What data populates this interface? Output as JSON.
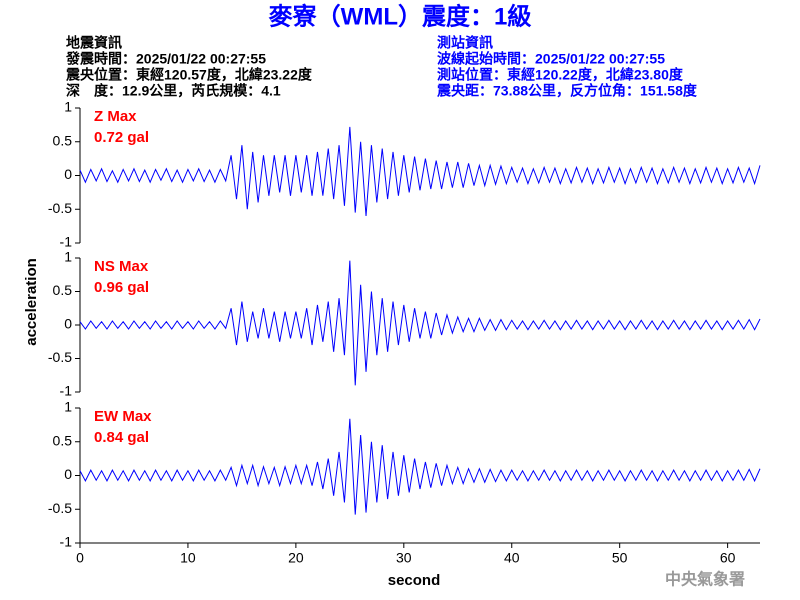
{
  "chart_data": {
    "type": "seismogram",
    "title": "麥寮（WML）震度：1級",
    "info_left": [
      "地震資訊",
      "發震時間：2025/01/22 00:27:55",
      "震央位置：東經120.57度，北緯23.22度",
      "深　度：12.9公里，芮氏規模：4.1"
    ],
    "info_right": [
      "測站資訊",
      "波線起始時間：2025/01/22 00:27:55",
      "測站位置：東經120.22度，北緯23.80度",
      "震央距：73.88公里，反方位角：151.58度"
    ],
    "ylabel": "acceleration",
    "xlabel": "second",
    "watermark": "中央氣象署",
    "xlim": [
      0,
      63
    ],
    "xticks": [
      0,
      10,
      20,
      30,
      40,
      50,
      60
    ],
    "ylim": [
      -1,
      1
    ],
    "yticks": [
      1,
      0.5,
      0,
      -0.5,
      -1
    ],
    "line_color": "#0000ff",
    "label_color": "#ff0000",
    "x": [
      0,
      0.5,
      1,
      1.5,
      2,
      2.5,
      3,
      3.5,
      4,
      4.5,
      5,
      5.5,
      6,
      6.5,
      7,
      7.5,
      8,
      8.5,
      9,
      9.5,
      10,
      10.5,
      11,
      11.5,
      12,
      12.5,
      13,
      13.5,
      14,
      14.5,
      15,
      15.5,
      16,
      16.5,
      17,
      17.5,
      18,
      18.5,
      19,
      19.5,
      20,
      20.5,
      21,
      21.5,
      22,
      22.5,
      23,
      23.5,
      24,
      24.5,
      25,
      25.5,
      26,
      26.5,
      27,
      27.5,
      28,
      28.5,
      29,
      29.5,
      30,
      30.5,
      31,
      31.5,
      32,
      32.5,
      33,
      33.5,
      34,
      34.5,
      35,
      35.5,
      36,
      36.5,
      37,
      37.5,
      38,
      38.5,
      39,
      39.5,
      40,
      40.5,
      41,
      41.5,
      42,
      42.5,
      43,
      43.5,
      44,
      44.5,
      45,
      45.5,
      46,
      46.5,
      47,
      47.5,
      48,
      48.5,
      49,
      49.5,
      50,
      50.5,
      51,
      51.5,
      52,
      52.5,
      53,
      53.5,
      54,
      54.5,
      55,
      55.5,
      56,
      56.5,
      57,
      57.5,
      58,
      58.5,
      59,
      59.5,
      60,
      60.5,
      61,
      61.5,
      62,
      62.5,
      63
    ],
    "series": [
      {
        "name": "Z Max",
        "peak_label": "0.72 gal",
        "values": [
          0.08,
          -0.1,
          0.09,
          -0.08,
          0.1,
          -0.09,
          0.07,
          -0.1,
          0.09,
          -0.08,
          0.1,
          -0.09,
          0.08,
          -0.1,
          0.09,
          -0.07,
          0.1,
          -0.09,
          0.08,
          -0.1,
          0.09,
          -0.08,
          0.1,
          -0.09,
          0.08,
          -0.1,
          0.09,
          -0.08,
          0.3,
          -0.35,
          0.45,
          -0.5,
          0.35,
          -0.4,
          0.3,
          -0.3,
          0.3,
          -0.25,
          0.3,
          -0.3,
          0.3,
          -0.25,
          0.3,
          -0.3,
          0.35,
          -0.3,
          0.4,
          -0.35,
          0.45,
          -0.45,
          0.72,
          -0.55,
          0.5,
          -0.6,
          0.45,
          -0.4,
          0.4,
          -0.35,
          0.35,
          -0.3,
          0.3,
          -0.25,
          0.28,
          -0.22,
          0.25,
          -0.2,
          0.22,
          -0.2,
          0.2,
          -0.18,
          0.2,
          -0.18,
          0.18,
          -0.15,
          0.15,
          -0.15,
          0.15,
          -0.13,
          0.14,
          -0.12,
          0.12,
          -0.1,
          0.11,
          -0.12,
          0.1,
          -0.11,
          0.12,
          -0.1,
          0.11,
          -0.12,
          0.1,
          -0.11,
          0.12,
          -0.1,
          0.11,
          -0.12,
          0.1,
          -0.11,
          0.12,
          -0.1,
          0.11,
          -0.12,
          0.1,
          -0.11,
          0.12,
          -0.1,
          0.11,
          -0.12,
          0.1,
          -0.11,
          0.12,
          -0.1,
          0.11,
          -0.12,
          0.1,
          -0.11,
          0.12,
          -0.1,
          0.11,
          -0.12,
          0.1,
          -0.11,
          0.12,
          -0.1,
          0.11,
          -0.12,
          0.15
        ]
      },
      {
        "name": "NS Max",
        "peak_label": "0.96 gal",
        "values": [
          0.05,
          -0.06,
          0.06,
          -0.05,
          0.05,
          -0.06,
          0.06,
          -0.05,
          0.05,
          -0.06,
          0.06,
          -0.05,
          0.05,
          -0.06,
          0.06,
          -0.05,
          0.05,
          -0.06,
          0.06,
          -0.05,
          0.05,
          -0.06,
          0.06,
          -0.05,
          0.05,
          -0.06,
          0.06,
          -0.05,
          0.25,
          -0.3,
          0.35,
          -0.25,
          0.2,
          -0.2,
          0.25,
          -0.2,
          0.2,
          -0.25,
          0.2,
          -0.2,
          0.2,
          -0.2,
          0.25,
          -0.3,
          0.3,
          -0.25,
          0.35,
          -0.4,
          0.4,
          -0.45,
          0.96,
          -0.9,
          0.6,
          -0.7,
          0.5,
          -0.45,
          0.4,
          -0.4,
          0.35,
          -0.3,
          0.3,
          -0.25,
          0.25,
          -0.2,
          0.2,
          -0.2,
          0.18,
          -0.15,
          0.15,
          -0.12,
          0.12,
          -0.1,
          0.1,
          -0.1,
          0.1,
          -0.08,
          0.08,
          -0.08,
          0.08,
          -0.07,
          0.07,
          -0.06,
          0.06,
          -0.07,
          0.06,
          -0.06,
          0.07,
          -0.06,
          0.06,
          -0.07,
          0.06,
          -0.06,
          0.07,
          -0.06,
          0.06,
          -0.07,
          0.06,
          -0.06,
          0.07,
          -0.06,
          0.06,
          -0.07,
          0.06,
          -0.06,
          0.07,
          -0.06,
          0.06,
          -0.07,
          0.06,
          -0.06,
          0.07,
          -0.06,
          0.06,
          -0.07,
          0.06,
          -0.06,
          0.07,
          -0.06,
          0.06,
          -0.07,
          0.06,
          -0.06,
          0.07,
          -0.06,
          0.08,
          -0.07,
          0.09
        ]
      },
      {
        "name": "EW Max",
        "peak_label": "0.84 gal",
        "values": [
          0.07,
          -0.08,
          0.08,
          -0.07,
          0.07,
          -0.08,
          0.08,
          -0.07,
          0.07,
          -0.08,
          0.08,
          -0.07,
          0.07,
          -0.08,
          0.08,
          -0.07,
          0.07,
          -0.08,
          0.08,
          -0.07,
          0.07,
          -0.08,
          0.08,
          -0.07,
          0.07,
          -0.08,
          0.08,
          -0.07,
          0.12,
          -0.15,
          0.15,
          -0.12,
          0.15,
          -0.15,
          0.13,
          -0.12,
          0.12,
          -0.15,
          0.13,
          -0.12,
          0.15,
          -0.12,
          0.15,
          -0.15,
          0.2,
          -0.2,
          0.25,
          -0.3,
          0.35,
          -0.4,
          0.84,
          -0.58,
          0.6,
          -0.55,
          0.5,
          -0.4,
          0.45,
          -0.35,
          0.35,
          -0.3,
          0.3,
          -0.25,
          0.25,
          -0.2,
          0.2,
          -0.18,
          0.18,
          -0.15,
          0.15,
          -0.12,
          0.12,
          -0.12,
          0.1,
          -0.1,
          0.1,
          -0.1,
          0.09,
          -0.09,
          0.08,
          -0.08,
          0.08,
          -0.07,
          0.07,
          -0.08,
          0.07,
          -0.07,
          0.08,
          -0.07,
          0.07,
          -0.08,
          0.07,
          -0.07,
          0.08,
          -0.07,
          0.07,
          -0.08,
          0.07,
          -0.07,
          0.08,
          -0.07,
          0.07,
          -0.08,
          0.07,
          -0.07,
          0.08,
          -0.07,
          0.07,
          -0.08,
          0.07,
          -0.07,
          0.08,
          -0.07,
          0.07,
          -0.08,
          0.07,
          -0.07,
          0.08,
          -0.07,
          0.07,
          -0.08,
          0.07,
          -0.07,
          0.08,
          -0.07,
          0.09,
          -0.08,
          0.1
        ]
      }
    ]
  }
}
